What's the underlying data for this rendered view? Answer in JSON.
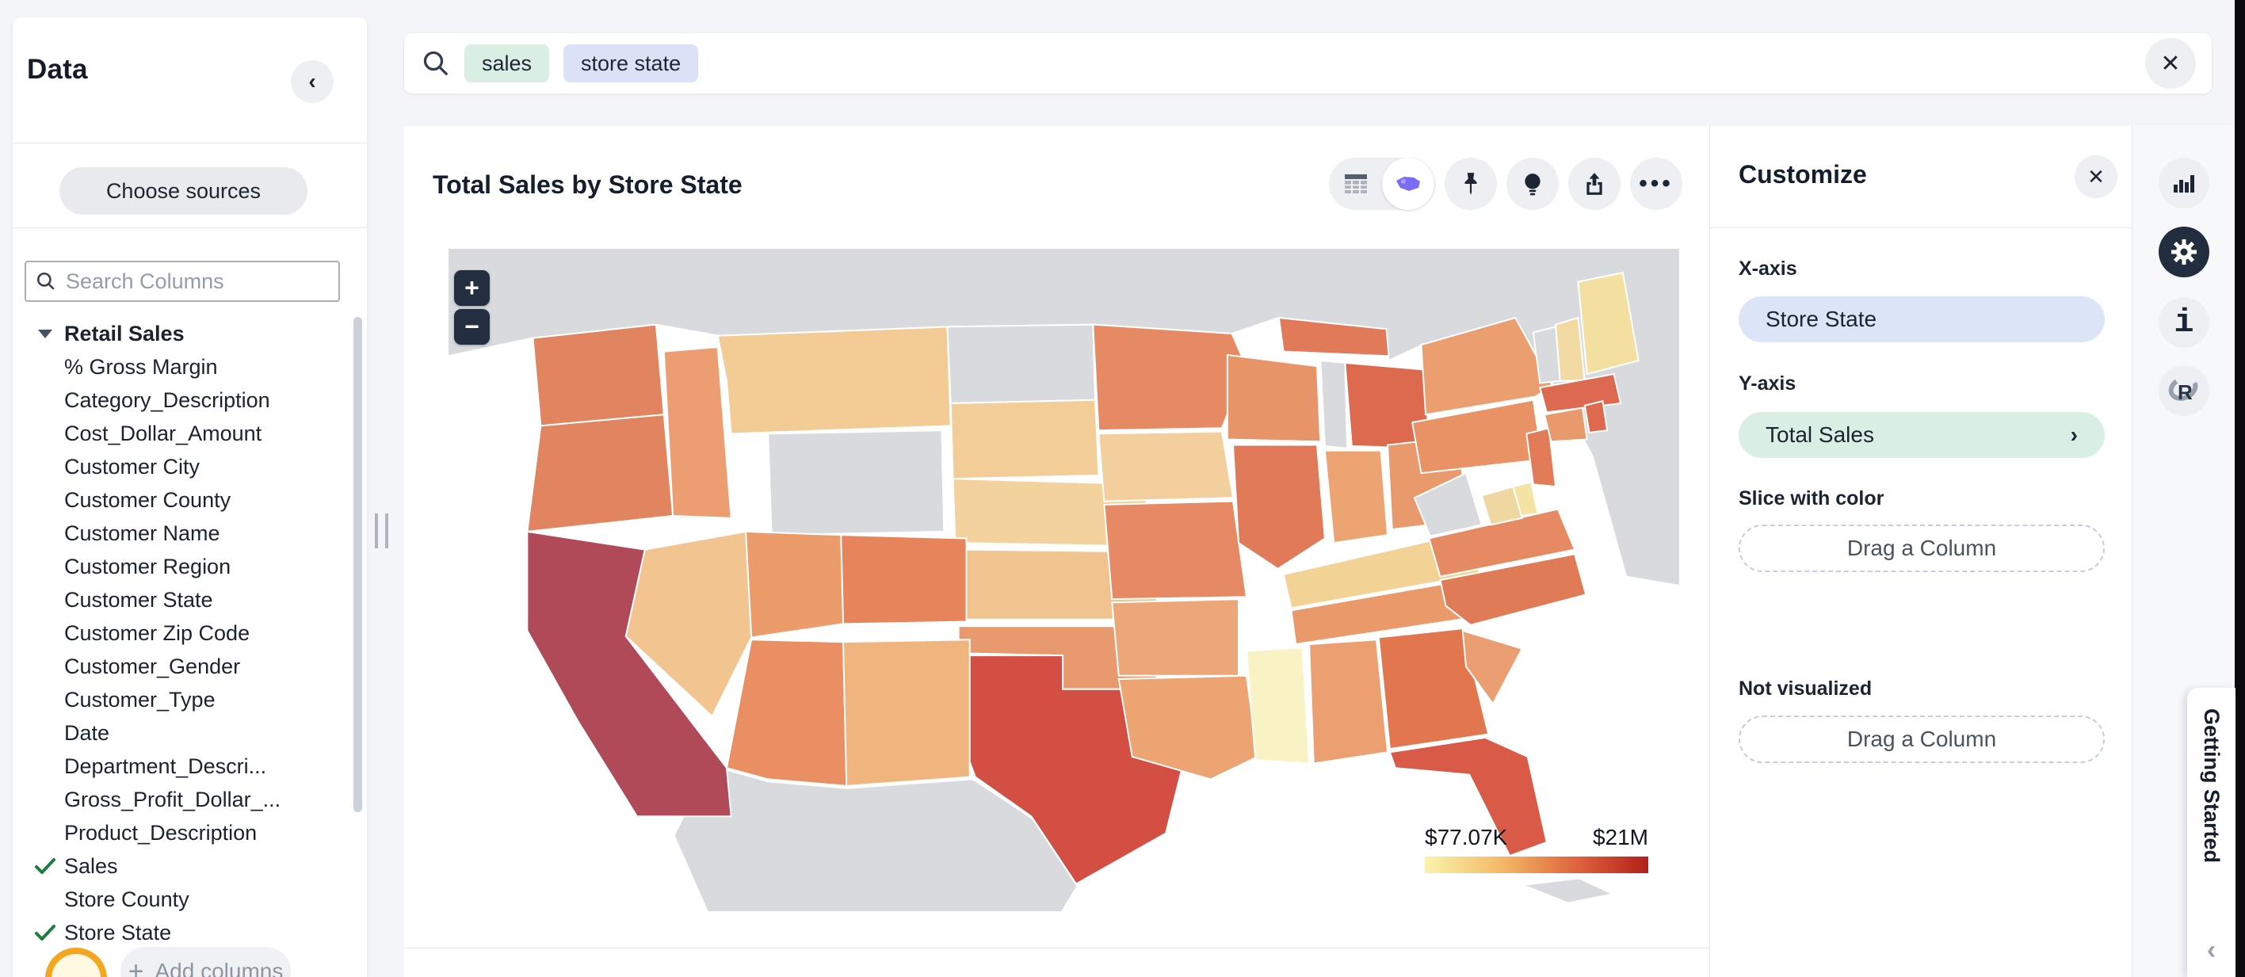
{
  "page": {
    "background": "#f4f5f8",
    "edge_strip_color": "#0b0b0d"
  },
  "data_panel": {
    "title": "Data",
    "choose_sources_label": "Choose sources",
    "search_placeholder": "Search Columns",
    "source_name": "Retail Sales",
    "columns": [
      {
        "label": "% Gross Margin",
        "checked": false
      },
      {
        "label": "Category_Description",
        "checked": false
      },
      {
        "label": "Cost_Dollar_Amount",
        "checked": false
      },
      {
        "label": "Customer City",
        "checked": false
      },
      {
        "label": "Customer County",
        "checked": false
      },
      {
        "label": "Customer Name",
        "checked": false
      },
      {
        "label": "Customer Region",
        "checked": false
      },
      {
        "label": "Customer State",
        "checked": false
      },
      {
        "label": "Customer Zip Code",
        "checked": false
      },
      {
        "label": "Customer_Gender",
        "checked": false
      },
      {
        "label": "Customer_Type",
        "checked": false
      },
      {
        "label": "Date",
        "checked": false
      },
      {
        "label": "Department_Descri...",
        "checked": false
      },
      {
        "label": "Gross_Profit_Dollar_...",
        "checked": false
      },
      {
        "label": "Product_Description",
        "checked": false
      },
      {
        "label": "Sales",
        "checked": true
      },
      {
        "label": "Store County",
        "checked": false
      },
      {
        "label": "Store State",
        "checked": true
      }
    ],
    "add_columns_label": "Add columns",
    "check_color": "#1b7d3e"
  },
  "search_bar": {
    "tokens": [
      {
        "text": "sales",
        "bg": "#d9efe3"
      },
      {
        "text": "store state",
        "bg": "#dbe2f8"
      }
    ],
    "close_label": "✕"
  },
  "chart": {
    "title": "Total Sales by Store State",
    "zoom_in": "+",
    "zoom_out": "−",
    "legend": {
      "min": "$77.07K",
      "max": "$21M",
      "gradient": [
        "#fbf2ad",
        "#f3b865",
        "#dd5e3b",
        "#b12019"
      ]
    }
  },
  "map": {
    "type": "choropleth",
    "ocean_color": "#ffffff",
    "no_data_color": "#d9dadd",
    "stroke_color": "#ffffff",
    "states": {
      "WA": "#e0855f",
      "OR": "#e08560",
      "CA": "#b04a59",
      "ID": "#ec9d72",
      "MT": "#f2cb95",
      "NV": "#f2c490",
      "UT": "#ec9b6b",
      "CO": "#e8845c",
      "AZ": "#e98f63",
      "NM": "#f0b57f",
      "SD": "#f2cd98",
      "NE": "#f4d29d",
      "KS": "#f1c38e",
      "OK": "#e89a6e",
      "TX": "#d34f44",
      "MN": "#e58a62",
      "IA": "#f3cf9d",
      "MO": "#e58a65",
      "AR": "#eca678",
      "LA": "#eca473",
      "WI": "#e79468",
      "IL": "#e07a58",
      "MI_UP": "#e07a58",
      "MI": "#dd6a4e",
      "IN": "#eda473",
      "OH": "#e89a6c",
      "KY": "#f2d395",
      "TN": "#ea9a6a",
      "MS": "#f8f2c4",
      "AL": "#ec9f71",
      "GA": "#e1764f",
      "FL": "#d95a47",
      "SC": "#ec9e73",
      "NC": "#e07b57",
      "VA": "#e58a62",
      "PA": "#e89266",
      "NY": "#eb9e6f",
      "NJ": "#e27b58",
      "DE": "#f5e3a4",
      "MD": "#eed7a0",
      "CT": "#e89a6c",
      "RI": "#dd6a4e",
      "MA": "#dd6950",
      "NH": "#f3d9a2",
      "ME": "#f3dfa0"
    },
    "no_data_states": [
      "WY",
      "ND",
      "WV",
      "VT"
    ]
  },
  "customize": {
    "title": "Customize",
    "close_label": "✕",
    "x_axis_label": "X-axis",
    "x_axis_value": "Store State",
    "x_axis_pill_bg": "#dce4f8",
    "y_axis_label": "Y-axis",
    "y_axis_value": "Total Sales",
    "y_axis_pill_bg": "#d9efe3",
    "y_axis_chevron": "›",
    "slice_label": "Slice with color",
    "slice_placeholder": "Drag a Column",
    "not_visualized_label": "Not visualized",
    "not_visualized_placeholder": "Drag a Column"
  },
  "getting_started": {
    "label": "Getting Started",
    "chevron": "‹"
  }
}
